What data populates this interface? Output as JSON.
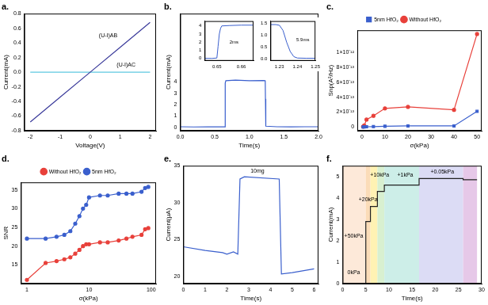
{
  "chart_data": [
    {
      "type": "line",
      "title": "a.",
      "x_label": "Voltage(V)",
      "y_label": "Current(mA)",
      "x": [
        -2,
        -1,
        0,
        1,
        2
      ],
      "series": [
        {
          "color": "#3b3b9b",
          "values": [
            -0.68,
            -0.34,
            0,
            0.34,
            0.68
          ]
        },
        {
          "color": "#5ec8e0",
          "values": [
            0,
            0,
            0,
            0,
            0
          ]
        }
      ],
      "xlim": [
        -2.2,
        2.2
      ],
      "xticks": [
        -2,
        -1,
        0,
        1,
        2
      ],
      "ylim": [
        -0.8,
        0.8
      ],
      "yticks": [
        {
          "value": -0.8,
          "label": "-0.8"
        },
        {
          "value": -0.6,
          "label": "-0.6"
        },
        {
          "value": -0.4,
          "label": "-0.4"
        },
        {
          "value": -0.2,
          "label": "-0.2"
        },
        {
          "value": 0,
          "label": "0.0"
        },
        {
          "value": 0.2,
          "label": "0.2"
        },
        {
          "value": 0.4,
          "label": "0.4"
        },
        {
          "value": 0.6,
          "label": "0.6"
        },
        {
          "value": 0.8,
          "label": "0.8"
        }
      ],
      "annotations": [
        {
          "text": "(U-I)AB",
          "x": 0.6,
          "y": 0.5
        },
        {
          "text": "(U-I)AC",
          "x": 1.2,
          "y": 0.1
        }
      ],
      "grid": false
    },
    {
      "type": "line",
      "title": "b.",
      "x_label": "Time(s)",
      "y_label": "Current(mA)",
      "x": [
        0,
        0.2,
        0.4,
        0.6,
        0.648,
        0.65,
        0.651,
        0.652,
        0.66,
        0.8,
        1.0,
        1.2,
        1.228,
        1.23,
        1.233,
        1.236,
        1.24,
        1.4,
        1.6,
        1.8,
        2
      ],
      "series": [
        {
          "color": "#3a5fcd",
          "values": [
            0.05,
            0.03,
            0.05,
            0.04,
            0.04,
            0.05,
            3.0,
            3.9,
            4.1,
            4.15,
            4.1,
            4.12,
            4.1,
            4.05,
            2.5,
            1.0,
            0.1,
            0.05,
            0.04,
            0.05,
            0.05
          ]
        }
      ],
      "xlim": [
        0,
        2
      ],
      "xticks": [
        {
          "value": 0,
          "label": "0.0"
        },
        {
          "value": 0.5,
          "label": "0.5"
        },
        {
          "value": 1,
          "label": "1.0"
        },
        {
          "value": 1.5,
          "label": "1.5"
        },
        {
          "value": 2,
          "label": "2.0"
        }
      ],
      "ylim": [
        -0.3,
        10
      ],
      "yticks": [
        0,
        1,
        2,
        3,
        4
      ],
      "grid": false,
      "insets": [
        {
          "type": "line",
          "x": [
            0.645,
            0.648,
            0.65,
            0.6505,
            0.651,
            0.6515,
            0.652,
            0.655,
            0.66,
            0.665
          ],
          "series": [
            {
              "color": "#3a5fcd",
              "values": [
                0,
                0,
                0.05,
                1.5,
                3.0,
                3.7,
                4.0,
                4.05,
                4.1,
                4.1
              ]
            }
          ],
          "xlim": [
            0.645,
            0.665
          ],
          "xticks": [
            0.65,
            0.66
          ],
          "ylim": [
            -0.3,
            4.6
          ],
          "yticks": [
            0,
            1,
            2,
            3,
            4
          ],
          "annotations": [
            {
              "text": "2ms",
              "x": 0.657,
              "y": 2
            }
          ],
          "grid": false
        },
        {
          "type": "line",
          "x": [
            1.225,
            1.228,
            1.23,
            1.232,
            1.234,
            1.236,
            1.238,
            1.24,
            1.245,
            1.25
          ],
          "series": [
            {
              "color": "#3a5fcd",
              "values": [
                1.45,
                1.45,
                1.42,
                1.2,
                0.7,
                0.3,
                0.08,
                0.02,
                0.01,
                0.01
              ]
            }
          ],
          "xlim": [
            1.225,
            1.25
          ],
          "xticks": [
            1.23,
            1.24,
            1.25
          ],
          "ylim": [
            -0.1,
            1.6
          ],
          "yticks": [
            {
              "value": 0,
              "label": "0.0"
            },
            {
              "value": 0.5,
              "label": "0.5"
            },
            {
              "value": 1,
              "label": "1.0"
            },
            {
              "value": 1.5,
              "label": "1.5"
            }
          ],
          "annotations": [
            {
              "text": "5.9ms",
              "x": 1.243,
              "y": 0.8
            }
          ],
          "grid": false
        }
      ]
    },
    {
      "type": "line",
      "title": "c.",
      "x_label": "σ(kPa)",
      "y_label": "Snp(A²/Hz)",
      "x": [
        0.5,
        1,
        2,
        5,
        10,
        20,
        40,
        50
      ],
      "series": [
        {
          "name": "5nm HfO₂",
          "color": "#3a5fcd",
          "marker": "square",
          "values": [
            0,
            1e-15,
            3e-15,
            5e-15,
            1e-14,
            1.5e-14,
            1.5e-14,
            2.1e-13
          ]
        },
        {
          "name": "Without HfO₂",
          "color": "#e8403a",
          "marker": "circle",
          "values": [
            5e-15,
            2e-14,
            1e-13,
            1.5e-13,
            2.5e-13,
            2.7e-13,
            2.3e-13,
            1.25e-12
          ]
        }
      ],
      "xlim": [
        -2,
        52
      ],
      "xticks": [
        0,
        10,
        20,
        30,
        40,
        50
      ],
      "ylim": [
        -5e-14,
        1.3e-12
      ],
      "yticks": [
        0,
        {
          "value": 2e-13,
          "label": "2×10⁻¹³"
        },
        {
          "value": 4e-13,
          "label": "4×10⁻¹³"
        },
        {
          "value": 6e-13,
          "label": "6×10⁻¹³"
        },
        {
          "value": 8e-13,
          "label": "8×10⁻¹³"
        },
        {
          "value": 1e-12,
          "label": "1×10⁻¹²"
        }
      ],
      "legend": "top",
      "grid": false
    },
    {
      "type": "line",
      "title": "d.",
      "x_label": "σ(kPa)",
      "y_label": "SNR",
      "x": [
        1,
        2,
        3,
        4,
        5,
        6,
        7,
        8,
        9,
        10,
        15,
        20,
        30,
        40,
        50,
        70,
        80,
        90
      ],
      "series": [
        {
          "name": "Without HfO₂",
          "color": "#e8403a",
          "marker": "circle",
          "values": [
            11,
            15.5,
            16,
            16.5,
            17,
            18,
            19,
            20,
            20.5,
            20.5,
            21,
            21,
            21.5,
            22,
            22.5,
            23,
            24.5,
            24.8
          ]
        },
        {
          "name": "5nm HfO₂",
          "color": "#3a5fcd",
          "marker": "circle",
          "values": [
            22,
            22,
            22.5,
            23,
            24,
            26,
            28,
            30,
            31,
            33,
            33.5,
            33.5,
            34,
            34,
            34,
            34.5,
            35.5,
            35.8
          ]
        }
      ],
      "log": "x",
      "xlim": [
        0.8,
        120
      ],
      "xticks": [
        1,
        10,
        100
      ],
      "ylim": [
        10,
        37
      ],
      "yticks": [
        15,
        20,
        25,
        30,
        35
      ],
      "legend": "top",
      "grid": false
    },
    {
      "type": "line",
      "title": "e.",
      "x_label": "Time(s)",
      "y_label": "Current(μA)",
      "x": [
        0,
        1,
        1.8,
        2,
        2.3,
        2.5,
        2.6,
        2.8,
        4.4,
        4.5,
        5,
        6
      ],
      "series": [
        {
          "color": "#3a5fcd",
          "values": [
            24,
            23.5,
            23.2,
            23,
            23.3,
            23,
            33.2,
            33.5,
            33.2,
            20.3,
            20.5,
            21
          ]
        }
      ],
      "xlim": [
        0,
        6.2
      ],
      "xticks": [
        0,
        1,
        2,
        3,
        4,
        5,
        6
      ],
      "ylim": [
        19,
        35
      ],
      "yticks": [
        20,
        25,
        30,
        35
      ],
      "annotations": [
        {
          "text": "10mg",
          "x": 3.4,
          "y": 34.3
        }
      ],
      "grid": false
    },
    {
      "type": "line",
      "title": "f.",
      "x_label": "Time(s)",
      "y_label": "Current(mA)",
      "x": [
        0,
        5,
        5,
        6,
        6,
        7.5,
        7.5,
        9,
        9,
        16.5,
        16.5,
        26,
        26,
        29
      ],
      "series": [
        {
          "color": "#222222",
          "values": [
            0,
            0,
            2.9,
            2.9,
            3.6,
            3.6,
            4.3,
            4.3,
            4.6,
            4.6,
            4.9,
            4.9,
            4.85,
            4.85
          ]
        }
      ],
      "xlim": [
        0,
        30
      ],
      "xticks": [
        0,
        5,
        10,
        15,
        20,
        25,
        30
      ],
      "ylim": [
        0,
        5.5
      ],
      "yticks": [
        0,
        1,
        2,
        3,
        4,
        5
      ],
      "bands": [
        {
          "x0": 0,
          "x1": 5,
          "color": "#fde9d9"
        },
        {
          "x0": 5,
          "x1": 6,
          "color": "#fbdcb8"
        },
        {
          "x0": 6,
          "x1": 7.5,
          "color": "#fff2b3"
        },
        {
          "x0": 7.5,
          "x1": 9,
          "color": "#d8f0d0"
        },
        {
          "x0": 9,
          "x1": 16.5,
          "color": "#cdeee8"
        },
        {
          "x0": 16.5,
          "x1": 26,
          "color": "#dcdcf5"
        },
        {
          "x0": 26,
          "x1": 29,
          "color": "#e6c8e8"
        }
      ],
      "annotations": [
        {
          "text": "0kPa",
          "x": 2.4,
          "y": 0.5
        },
        {
          "text": "+50kPa",
          "x": 2.4,
          "y": 2.2
        },
        {
          "text": "+20kPa",
          "x": 5.5,
          "y": 3.9
        },
        {
          "text": "+10kPa",
          "x": 8,
          "y": 5.05
        },
        {
          "text": "+1kPa",
          "x": 13.5,
          "y": 5.05
        },
        {
          "text": "+0.05kPa",
          "x": 21.5,
          "y": 5.2
        }
      ],
      "grid": false
    }
  ]
}
